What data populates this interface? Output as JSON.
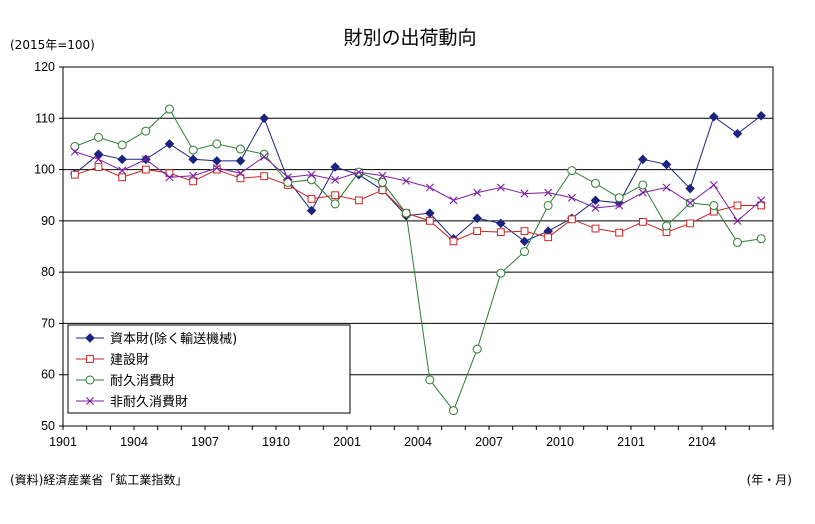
{
  "chart_data": {
    "type": "line",
    "title": "財別の出荷動向",
    "unit_label": "(2015年=100)",
    "source_note": "(資料)経済産業省「鉱工業指数」",
    "xlabel": "(年・月)",
    "ylim": [
      50,
      120
    ],
    "yticks": [
      50,
      60,
      70,
      80,
      90,
      100,
      110,
      120
    ],
    "grid": true,
    "legend_position": "bottom-left",
    "x": [
      "1901",
      "1902",
      "1903",
      "1904",
      "1905",
      "1906",
      "1907",
      "1908",
      "1909",
      "1910",
      "1911",
      "1912",
      "2001",
      "2002",
      "2003",
      "2004",
      "2005",
      "2006",
      "2007",
      "2008",
      "2009",
      "2010",
      "2011",
      "2012",
      "2101",
      "2102",
      "2103",
      "2104",
      "2105",
      "2106"
    ],
    "xtick_labels": [
      "1901",
      "1904",
      "1907",
      "1910",
      "2001",
      "2004",
      "2007",
      "2010",
      "2101",
      "2104"
    ],
    "series": [
      {
        "name": "資本財(除く輸送機械)",
        "color": "#1a237e",
        "marker": "diamond",
        "values": [
          99.2,
          103.0,
          102.0,
          102.0,
          105.0,
          102.0,
          101.7,
          101.7,
          110.0,
          98.0,
          92.0,
          100.5,
          99.0,
          96.0,
          91.0,
          91.5,
          86.5,
          90.5,
          89.5,
          86.0,
          88.0,
          90.5,
          94.0,
          93.5,
          102.0,
          101.0,
          96.3,
          110.3,
          107.0,
          110.5
        ]
      },
      {
        "name": "建設財",
        "color": "#c62828",
        "marker": "square",
        "values": [
          99.0,
          100.5,
          98.5,
          100.0,
          99.3,
          97.7,
          100.0,
          98.3,
          98.7,
          97.0,
          94.3,
          95.0,
          94.0,
          96.0,
          91.5,
          90.0,
          86.0,
          88.0,
          87.8,
          88.0,
          86.8,
          90.3,
          88.5,
          87.7,
          89.8,
          87.8,
          89.5,
          91.8,
          93.0,
          93.0
        ]
      },
      {
        "name": "耐久消費財",
        "color": "#2e7d32",
        "marker": "circle",
        "values": [
          104.5,
          106.3,
          104.8,
          107.5,
          111.8,
          103.8,
          105.0,
          104.0,
          103.0,
          97.5,
          98.0,
          93.3,
          99.5,
          97.5,
          91.5,
          59.0,
          53.0,
          65.0,
          79.8,
          84.0,
          93.0,
          99.8,
          97.3,
          94.5,
          97.0,
          89.0,
          93.5,
          93.0,
          85.8,
          86.5
        ]
      },
      {
        "name": "非耐久消費財",
        "color": "#7b1fa2",
        "marker": "x",
        "values": [
          103.5,
          102.0,
          99.8,
          102.0,
          98.5,
          98.8,
          100.3,
          99.3,
          102.5,
          98.5,
          99.0,
          98.0,
          99.5,
          98.8,
          97.8,
          96.5,
          94.0,
          95.5,
          96.5,
          95.3,
          95.5,
          94.5,
          92.5,
          93.0,
          95.5,
          96.5,
          93.5,
          97.0,
          90.0,
          94.0
        ]
      }
    ]
  }
}
